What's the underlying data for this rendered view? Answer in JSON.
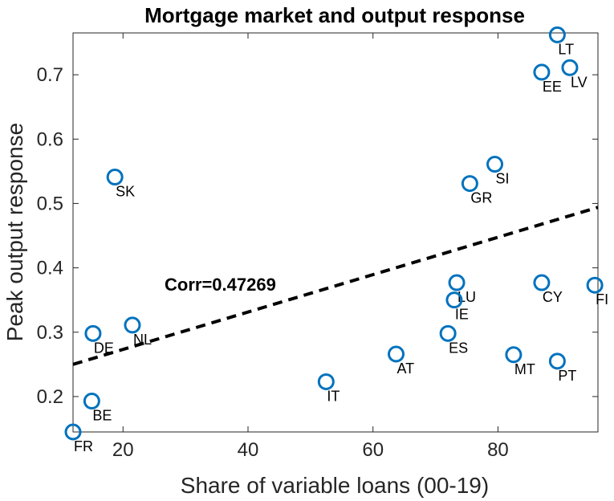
{
  "chart_data": {
    "type": "scatter",
    "title": "Mortgage market and output response",
    "xlabel": "Share of variable loans (00-19)",
    "ylabel": "Peak output response",
    "xlim": [
      12,
      96
    ],
    "ylim": [
      0.145,
      0.765
    ],
    "xticks": [
      20,
      40,
      60,
      80
    ],
    "yticks": [
      0.2,
      0.3,
      0.4,
      0.5,
      0.6,
      0.7
    ],
    "ytick_labels": [
      "0.2",
      "0.3",
      "0.4",
      "0.5",
      "0.6",
      "0.7"
    ],
    "annotation": "Corr=0.47269",
    "marker_color": "#0072BD",
    "trend_line": {
      "x": [
        12,
        96
      ],
      "y": [
        0.25,
        0.494
      ],
      "style": "dashed",
      "color": "#000000"
    },
    "points": [
      {
        "label": "FR",
        "x": 12.0,
        "y": 0.145
      },
      {
        "label": "BE",
        "x": 15.0,
        "y": 0.193
      },
      {
        "label": "DE",
        "x": 15.2,
        "y": 0.298
      },
      {
        "label": "NL",
        "x": 21.5,
        "y": 0.311
      },
      {
        "label": "SK",
        "x": 18.7,
        "y": 0.541
      },
      {
        "label": "IT",
        "x": 52.5,
        "y": 0.223
      },
      {
        "label": "AT",
        "x": 63.7,
        "y": 0.266
      },
      {
        "label": "ES",
        "x": 72.0,
        "y": 0.298
      },
      {
        "label": "LU",
        "x": 73.4,
        "y": 0.377
      },
      {
        "label": "IE",
        "x": 73.0,
        "y": 0.35
      },
      {
        "label": "GR",
        "x": 75.5,
        "y": 0.531
      },
      {
        "label": "SI",
        "x": 79.5,
        "y": 0.561
      },
      {
        "label": "MT",
        "x": 82.5,
        "y": 0.265
      },
      {
        "label": "CY",
        "x": 87.0,
        "y": 0.377
      },
      {
        "label": "PT",
        "x": 89.5,
        "y": 0.255
      },
      {
        "label": "EE",
        "x": 87.0,
        "y": 0.704
      },
      {
        "label": "LV",
        "x": 91.5,
        "y": 0.711
      },
      {
        "label": "LT",
        "x": 89.5,
        "y": 0.762
      },
      {
        "label": "FI",
        "x": 95.5,
        "y": 0.373
      }
    ]
  }
}
